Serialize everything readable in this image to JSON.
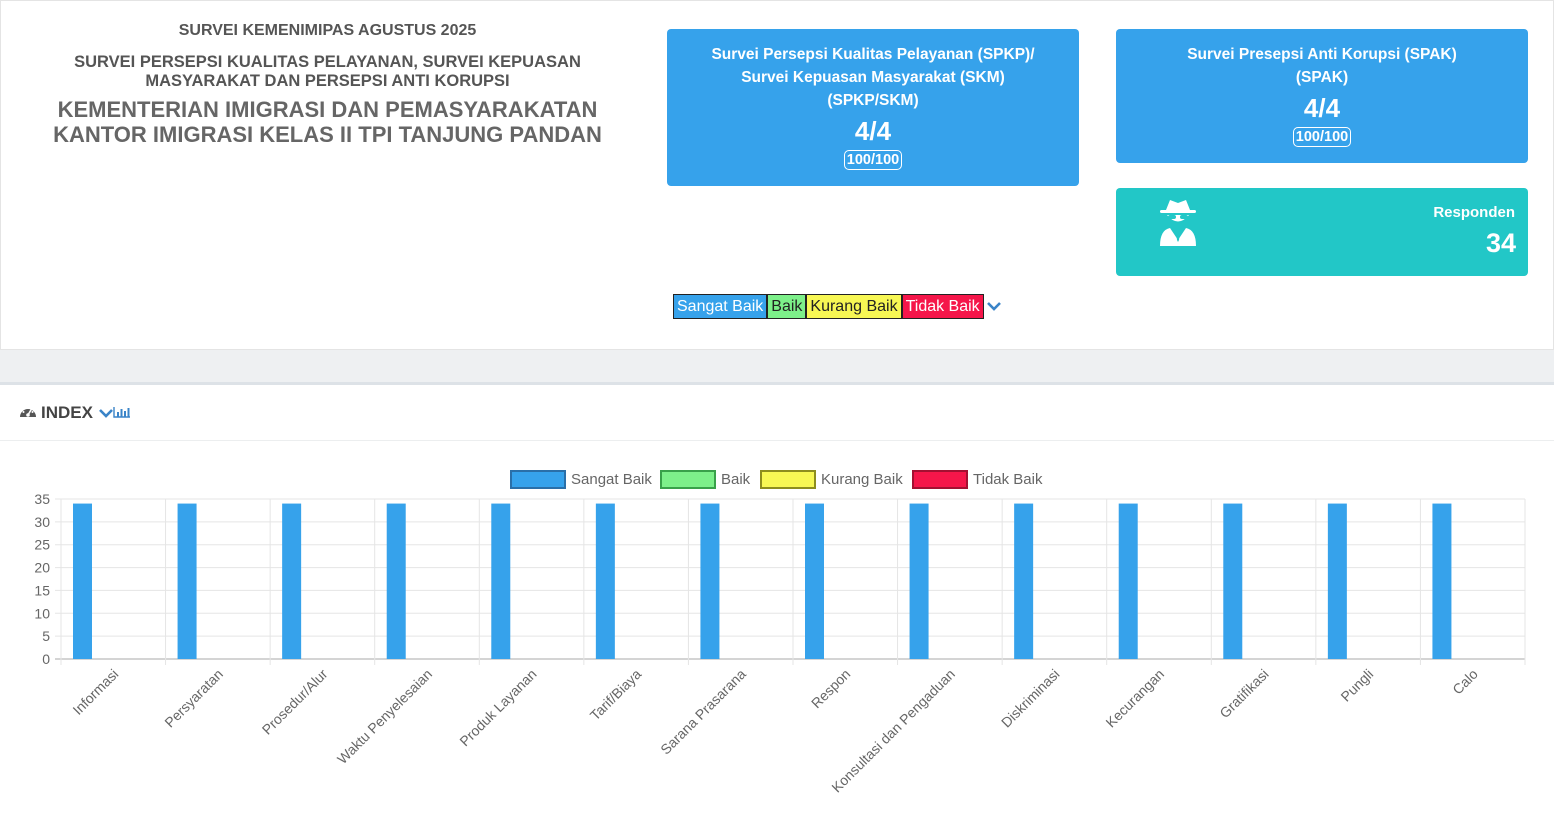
{
  "header": {
    "survey_title": "SURVEI KEMENIMIPAS AGUSTUS 2025",
    "survey_subtitle": "SURVEI PERSEPSI KUALITAS PELAYANAN, SURVEI KEPUASAN MASYARAKAT DAN PERSEPSI ANTI KORUPSI",
    "org_line1": "KEMENTERIAN IMIGRASI DAN PEMASYARAKATAN",
    "org_line2": "KANTOR IMIGRASI KELAS II TPI TANJUNG PANDAN"
  },
  "cards": {
    "spkp": {
      "line1": "Survei Persepsi Kualitas Pelayanan (SPKP)/",
      "line2": "Survei Kepuasan Masyarakat (SKM)",
      "line3": "(SPKP/SKM)",
      "score": "4/4",
      "index": "100/100"
    },
    "spak": {
      "line1": "Survei Presepsi Anti Korupsi (SPAK)",
      "line2": "(SPAK)",
      "score": "4/4",
      "index": "100/100"
    },
    "respondents": {
      "label": "Responden",
      "value": "34",
      "icon": "user-secret-icon"
    }
  },
  "legend_bar": {
    "items": [
      "Sangat Baik",
      "Baik",
      "Kurang Baik",
      "Tidak Baik"
    ],
    "toggle_icon": "chevron-down-icon"
  },
  "index_section": {
    "title": "INDEX",
    "icons": [
      "tachometer-icon",
      "chevron-down-icon",
      "bar-chart-icon"
    ]
  },
  "colors": {
    "sangat_baik": "#36a2eb",
    "baik": "#7df08a",
    "kurang_baik": "#f7f754",
    "tidak_baik": "#f5164a",
    "teal": "#22c7c7"
  },
  "chart_data": {
    "type": "bar",
    "categories": [
      "Informasi",
      "Persyaratan",
      "Prosedur/Alur",
      "Waktu Penyelesaian",
      "Produk Layanan",
      "Tarif/Biaya",
      "Sarana Prasarana",
      "Respon",
      "Konsultasi dan Pengaduan",
      "Diskriminasi",
      "Kecurangan",
      "Gratifikasi",
      "Pungli",
      "Calo"
    ],
    "series": [
      {
        "name": "Sangat Baik",
        "values": [
          34,
          34,
          34,
          34,
          34,
          34,
          34,
          34,
          34,
          34,
          34,
          34,
          34,
          34
        ]
      },
      {
        "name": "Baik",
        "values": [
          0,
          0,
          0,
          0,
          0,
          0,
          0,
          0,
          0,
          0,
          0,
          0,
          0,
          0
        ]
      },
      {
        "name": "Kurang Baik",
        "values": [
          0,
          0,
          0,
          0,
          0,
          0,
          0,
          0,
          0,
          0,
          0,
          0,
          0,
          0
        ]
      },
      {
        "name": "Tidak Baik",
        "values": [
          0,
          0,
          0,
          0,
          0,
          0,
          0,
          0,
          0,
          0,
          0,
          0,
          0,
          0
        ]
      }
    ],
    "ylim": [
      0,
      35
    ],
    "yticks": [
      0,
      5,
      10,
      15,
      20,
      25,
      30,
      35
    ],
    "grid": true,
    "legend_position": "top"
  }
}
